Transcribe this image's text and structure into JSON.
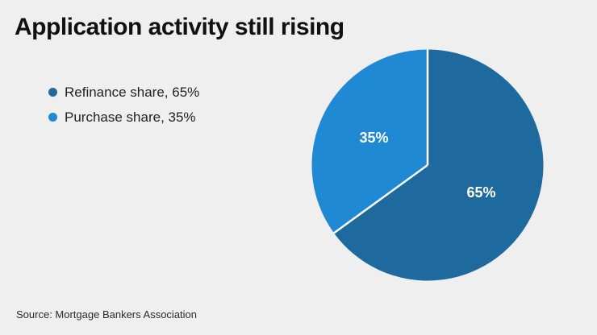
{
  "page": {
    "background_color": "#efefef"
  },
  "header": {
    "title": "Application activity still rising"
  },
  "legend": {
    "items": [
      {
        "label": "Refinance share, 65%",
        "color": "#1e699e"
      },
      {
        "label": "Purchase share, 35%",
        "color": "#2089d3"
      }
    ]
  },
  "chart_data": {
    "type": "pie",
    "title": "Application activity still rising",
    "slices": [
      {
        "name": "Refinance share",
        "value": 65,
        "label": "65%",
        "color": "#1e699e"
      },
      {
        "name": "Purchase share",
        "value": 35,
        "label": "35%",
        "color": "#2089d3"
      }
    ],
    "start_angle_deg": 0,
    "direction": "clockwise",
    "slice_label_color": "#ffffff",
    "divider_color": "#ffffff",
    "legend_position": "upper-left",
    "label_radius_fraction": 0.52
  },
  "footer": {
    "source": "Source: Mortgage Bankers Association"
  }
}
